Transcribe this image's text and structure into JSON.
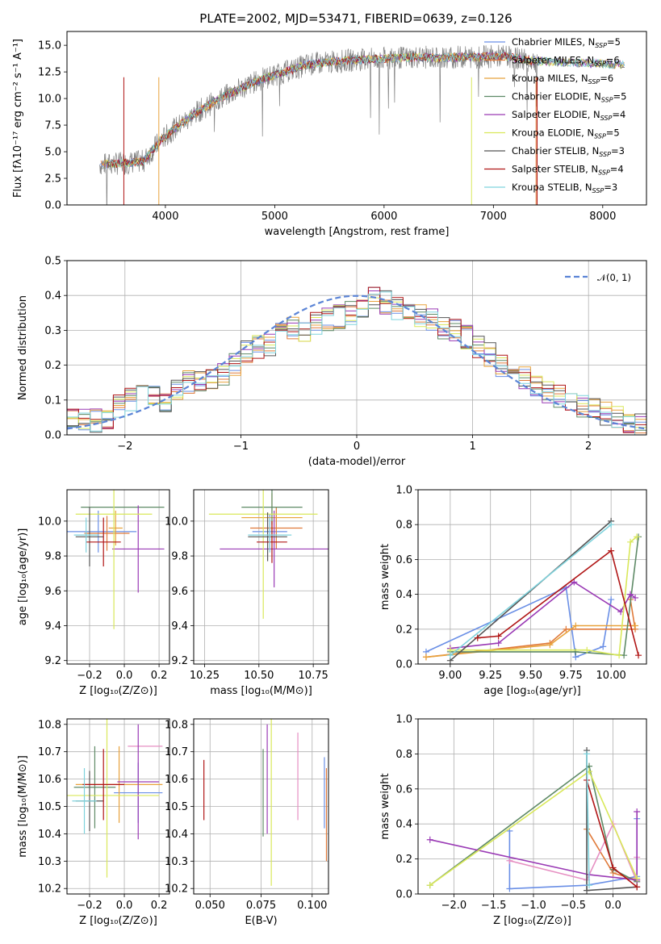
{
  "figure": {
    "title": "PLATE=2002, MJD=53471, FIBERID=0639, z=0.126"
  },
  "chart_data": [
    {
      "panel": "spectrum",
      "type": "line",
      "title": "PLATE=2002, MJD=53471, FIBERID=0639, z=0.126",
      "xlabel": "wavelength [Angstrom, rest frame]",
      "ylabel": "Flux [fλ10⁻¹⁷ erg cm⁻² s⁻¹ A⁻¹]",
      "xlim": [
        3100,
        8400
      ],
      "ylim": [
        0,
        16.3
      ],
      "xticks": [
        4000,
        5000,
        6000,
        7000,
        8000
      ],
      "yticks": [
        0.0,
        2.5,
        5.0,
        7.5,
        10.0,
        12.5,
        15.0
      ],
      "xtick_labels": [
        "4000",
        "5000",
        "6000",
        "7000",
        "8000"
      ],
      "ytick_labels": [
        "0.0",
        "2.5",
        "5.0",
        "7.5",
        "10.0",
        "12.5",
        "15.0"
      ],
      "grid": false,
      "legend_placement": "right",
      "legend": [
        {
          "name": "Chabrier MILES, N",
          "sub": "SSP",
          "suffix": "=5",
          "color": "#6a8fe6"
        },
        {
          "name": "Salpeter MILES, N",
          "sub": "SSP",
          "suffix": "=6",
          "color": "#e07a3a"
        },
        {
          "name": "Kroupa MILES, N",
          "sub": "SSP",
          "suffix": "=6",
          "color": "#e8a23c"
        },
        {
          "name": "Chabrier ELODIE, N",
          "sub": "SSP",
          "suffix": "=5",
          "color": "#5e8a66"
        },
        {
          "name": "Salpeter ELODIE, N",
          "sub": "SSP",
          "suffix": "=4",
          "color": "#9a3ab5"
        },
        {
          "name": "Kroupa ELODIE, N",
          "sub": "SSP",
          "suffix": "=5",
          "color": "#d9e85a"
        },
        {
          "name": "Chabrier STELIB, N",
          "sub": "SSP",
          "suffix": "=3",
          "color": "#555555"
        },
        {
          "name": "Salpeter STELIB, N",
          "sub": "SSP",
          "suffix": "=4",
          "color": "#b01515"
        },
        {
          "name": "Kroupa STELIB, N",
          "sub": "SSP",
          "suffix": "=3",
          "color": "#7fd3dd"
        }
      ],
      "data_color": "#808080",
      "continuum": {
        "x": [
          3400,
          3600,
          3800,
          3950,
          4100,
          4300,
          4500,
          4700,
          4900,
          5100,
          5300,
          5500,
          5700,
          5900,
          6100,
          6300,
          6500,
          6700,
          6900,
          7100,
          7300,
          7400
        ],
        "y": [
          3.8,
          3.9,
          4.1,
          6.0,
          7.3,
          8.8,
          10.0,
          11.0,
          11.9,
          12.5,
          13.2,
          13.4,
          13.6,
          13.7,
          13.8,
          13.9,
          13.8,
          13.9,
          13.9,
          14.0,
          13.6,
          13.5
        ]
      }
    },
    {
      "panel": "residuals",
      "type": "step",
      "xlabel": "(data-model)/error",
      "ylabel": "Normed distribution",
      "xlim": [
        -2.5,
        2.5
      ],
      "ylim": [
        0,
        0.5
      ],
      "xticks": [
        -2,
        -1,
        0,
        1,
        2
      ],
      "yticks": [
        0.0,
        0.1,
        0.2,
        0.3,
        0.4,
        0.5
      ],
      "xtick_labels": [
        "−2",
        "−1",
        "0",
        "1",
        "2"
      ],
      "ytick_labels": [
        "0.0",
        "0.1",
        "0.2",
        "0.3",
        "0.4",
        "0.5"
      ],
      "grid": true,
      "legend_placement": "top-right",
      "gaussian_label": "𝒩(0, 1)",
      "gaussian_color": "#5b84d6",
      "bin_edges_step": 0.1,
      "hist_values": [
        0.04,
        0.04,
        0.04,
        0.05,
        0.08,
        0.1,
        0.12,
        0.11,
        0.1,
        0.13,
        0.15,
        0.16,
        0.16,
        0.17,
        0.2,
        0.24,
        0.25,
        0.26,
        0.29,
        0.31,
        0.3,
        0.32,
        0.33,
        0.34,
        0.35,
        0.36,
        0.39,
        0.38,
        0.36,
        0.35,
        0.34,
        0.33,
        0.31,
        0.3,
        0.28,
        0.25,
        0.23,
        0.2,
        0.18,
        0.16,
        0.14,
        0.12,
        0.11,
        0.1,
        0.08,
        0.07,
        0.06,
        0.05,
        0.04,
        0.03
      ]
    },
    {
      "panel": "age-vs-Z",
      "type": "errorbar",
      "xlabel": "Z [log₁₀(Z/Z⊙)]",
      "ylabel": "age  [log₁₀(age/yr)]",
      "xlim": [
        -0.33,
        0.26
      ],
      "ylim": [
        9.18,
        10.18
      ],
      "xticks": [
        -0.2,
        0.0,
        0.2
      ],
      "yticks": [
        9.2,
        9.4,
        9.6,
        9.8,
        10.0
      ],
      "xtick_labels": [
        "−0.2",
        "0.0",
        "0.2"
      ],
      "ytick_labels": [
        "9.2",
        "9.4",
        "9.6",
        "9.8",
        "10.0"
      ],
      "grid": true,
      "points": [
        {
          "x": -0.15,
          "y": 9.94,
          "xerr": 0.22,
          "yerr": 0.12,
          "color": "#6a8fe6"
        },
        {
          "x": -0.1,
          "y": 9.93,
          "xerr": 0.13,
          "yerr": 0.1,
          "color": "#e07a3a"
        },
        {
          "x": -0.05,
          "y": 9.96,
          "xerr": 0.04,
          "yerr": 0.1,
          "color": "#e8a23c"
        },
        {
          "x": -0.01,
          "y": 10.08,
          "xerr": 0.24,
          "yerr": 0.0,
          "color": "#5e8a66"
        },
        {
          "x": 0.08,
          "y": 9.84,
          "xerr": 0.15,
          "yerr": 0.25,
          "color": "#9a3ab5"
        },
        {
          "x": -0.06,
          "y": 10.04,
          "xerr": 0.22,
          "yerr": 0.66,
          "color": "#d9e85a"
        },
        {
          "x": -0.2,
          "y": 9.91,
          "xerr": 0.08,
          "yerr": 0.17,
          "color": "#555555"
        },
        {
          "x": -0.12,
          "y": 9.88,
          "xerr": 0.1,
          "yerr": 0.14,
          "color": "#b01515"
        },
        {
          "x": -0.22,
          "y": 9.92,
          "xerr": 0.07,
          "yerr": 0.1,
          "color": "#7fd3dd"
        }
      ]
    },
    {
      "panel": "age-vs-mass",
      "type": "errorbar",
      "xlabel": "mass [log₁₀(M/M⊙)]",
      "ylabel": "",
      "xlim": [
        10.2,
        10.82
      ],
      "ylim": [
        9.18,
        10.18
      ],
      "xticks": [
        10.25,
        10.5,
        10.75
      ],
      "yticks": [
        9.2,
        9.4,
        9.6,
        9.8,
        10.0
      ],
      "xtick_labels": [
        "10.25",
        "10.50",
        "10.75"
      ],
      "ytick_labels": [
        "9.2",
        "9.4",
        "9.6",
        "9.8",
        "10.0"
      ],
      "grid": true,
      "points": [
        {
          "x": 10.55,
          "y": 9.94,
          "xerr": 0.08,
          "yerr": 0.1,
          "color": "#6a8fe6"
        },
        {
          "x": 10.58,
          "y": 9.96,
          "xerr": 0.12,
          "yerr": 0.12,
          "color": "#e07a3a"
        },
        {
          "x": 10.56,
          "y": 10.02,
          "xerr": 0.14,
          "yerr": 0.14,
          "color": "#e8a23c"
        },
        {
          "x": 10.56,
          "y": 10.08,
          "xerr": 0.14,
          "yerr": 0.1,
          "color": "#5e8a66"
        },
        {
          "x": 10.57,
          "y": 9.84,
          "xerr": 0.25,
          "yerr": 0.22,
          "color": "#9a3ab5"
        },
        {
          "x": 10.52,
          "y": 10.04,
          "xerr": 0.25,
          "yerr": 0.6,
          "color": "#d9e85a"
        },
        {
          "x": 10.54,
          "y": 9.91,
          "xerr": 0.09,
          "yerr": 0.14,
          "color": "#555555"
        },
        {
          "x": 10.56,
          "y": 9.88,
          "xerr": 0.07,
          "yerr": 0.12,
          "color": "#b01515"
        },
        {
          "x": 10.55,
          "y": 9.92,
          "xerr": 0.1,
          "yerr": 0.1,
          "color": "#7fd3dd"
        }
      ]
    },
    {
      "panel": "weight-vs-age",
      "type": "line",
      "xlabel": "age  [log₁₀(age/yr)]",
      "ylabel": "mass weight",
      "xlim": [
        8.8,
        10.22
      ],
      "ylim": [
        0,
        1.0
      ],
      "xticks": [
        9.0,
        9.25,
        9.5,
        9.75,
        10.0
      ],
      "yticks": [
        0.0,
        0.2,
        0.4,
        0.6,
        0.8,
        1.0
      ],
      "xtick_labels": [
        "9.00",
        "9.25",
        "9.50",
        "9.75",
        "10.00"
      ],
      "ytick_labels": [
        "0.0",
        "0.2",
        "0.4",
        "0.6",
        "0.8",
        "1.0"
      ],
      "grid": true,
      "series": [
        {
          "color": "#6a8fe6",
          "x": [
            8.85,
            9.72,
            9.78,
            9.95,
            10.0
          ],
          "y": [
            0.07,
            0.44,
            0.04,
            0.1,
            0.37
          ]
        },
        {
          "color": "#e07a3a",
          "x": [
            8.85,
            9.62,
            9.72,
            10.15,
            10.12
          ],
          "y": [
            0.04,
            0.12,
            0.2,
            0.2,
            0.37
          ]
        },
        {
          "color": "#e8a23c",
          "x": [
            8.85,
            9.62,
            9.78,
            10.15
          ],
          "y": [
            0.04,
            0.11,
            0.22,
            0.22
          ]
        },
        {
          "color": "#5e8a66",
          "x": [
            9.0,
            9.78,
            10.08,
            10.17
          ],
          "y": [
            0.07,
            0.07,
            0.05,
            0.73
          ]
        },
        {
          "color": "#9a3ab5",
          "x": [
            9.0,
            9.3,
            9.77,
            10.06,
            10.12,
            10.15
          ],
          "y": [
            0.09,
            0.12,
            0.47,
            0.3,
            0.4,
            0.38
          ]
        },
        {
          "color": "#d9e85a",
          "x": [
            9.0,
            9.85,
            10.05,
            10.12,
            10.16
          ],
          "y": [
            0.08,
            0.08,
            0.05,
            0.7,
            0.73
          ]
        },
        {
          "color": "#555555",
          "x": [
            9.0,
            10.0
          ],
          "y": [
            0.02,
            0.82
          ]
        },
        {
          "color": "#b01515",
          "x": [
            9.17,
            9.3,
            10.0,
            10.17
          ],
          "y": [
            0.15,
            0.16,
            0.65,
            0.05
          ]
        },
        {
          "color": "#7fd3dd",
          "x": [
            9.0,
            10.0
          ],
          "y": [
            0.05,
            0.8
          ]
        }
      ]
    },
    {
      "panel": "mass-vs-Z",
      "type": "errorbar",
      "xlabel": "Z [log₁₀(Z/Z⊙)]",
      "ylabel": "mass [log₁₀(M/M⊙)]",
      "xlim": [
        -0.33,
        0.26
      ],
      "ylim": [
        10.18,
        10.82
      ],
      "xticks": [
        -0.2,
        0.0,
        0.2
      ],
      "yticks": [
        10.2,
        10.3,
        10.4,
        10.5,
        10.6,
        10.7,
        10.8
      ],
      "xtick_labels": [
        "−0.2",
        "0.0",
        "0.2"
      ],
      "ytick_labels": [
        "10.2",
        "10.3",
        "10.4",
        "10.5",
        "10.6",
        "10.7",
        "10.8"
      ],
      "grid": true,
      "points": [
        {
          "x": 0.08,
          "y": 10.55,
          "xerr": 0.14,
          "yerr": 0.11,
          "color": "#6a8fe6"
        },
        {
          "x": 0.12,
          "y": 10.72,
          "xerr": 0.1,
          "yerr": 0.0,
          "color": "#e68fc2"
        },
        {
          "x": -0.03,
          "y": 10.58,
          "xerr": 0.25,
          "yerr": 0.14,
          "color": "#e8a23c"
        },
        {
          "x": -0.17,
          "y": 10.57,
          "xerr": 0.12,
          "yerr": 0.15,
          "color": "#5e8a66"
        },
        {
          "x": 0.08,
          "y": 10.59,
          "xerr": 0.12,
          "yerr": 0.21,
          "color": "#9a3ab5"
        },
        {
          "x": -0.1,
          "y": 10.54,
          "xerr": 0.3,
          "yerr": 0.3,
          "color": "#d9e85a"
        },
        {
          "x": -0.2,
          "y": 10.52,
          "xerr": 0.08,
          "yerr": 0.11,
          "color": "#555555"
        },
        {
          "x": -0.12,
          "y": 10.58,
          "xerr": 0.12,
          "yerr": 0.13,
          "color": "#b01515"
        },
        {
          "x": -0.23,
          "y": 10.52,
          "xerr": 0.07,
          "yerr": 0.12,
          "color": "#7fd3dd"
        }
      ]
    },
    {
      "panel": "mass-vs-EBV",
      "type": "errorbar",
      "xlabel": "E(B-V)",
      "ylabel": "",
      "xlim": [
        0.042,
        0.108
      ],
      "ylim": [
        10.18,
        10.82
      ],
      "xticks": [
        0.05,
        0.075,
        0.1
      ],
      "yticks": [
        10.2,
        10.3,
        10.4,
        10.5,
        10.6,
        10.7,
        10.8
      ],
      "xtick_labels": [
        "0.050",
        "0.075",
        "0.100"
      ],
      "ytick_labels": [
        "10.2",
        "10.3",
        "10.4",
        "10.5",
        "10.6",
        "10.7",
        "10.8"
      ],
      "grid": true,
      "points": [
        {
          "x": 0.047,
          "y": 10.56,
          "yerr": 0.11,
          "color": "#b01515"
        },
        {
          "x": 0.076,
          "y": 10.55,
          "yerr": 0.16,
          "color": "#5e8a66"
        },
        {
          "x": 0.078,
          "y": 10.6,
          "yerr": 0.2,
          "color": "#9a3ab5"
        },
        {
          "x": 0.08,
          "y": 10.56,
          "yerr": 0.35,
          "color": "#d9e85a"
        },
        {
          "x": 0.093,
          "y": 10.61,
          "yerr": 0.16,
          "color": "#e68fc2"
        },
        {
          "x": 0.106,
          "y": 10.55,
          "yerr": 0.13,
          "color": "#6a8fe6"
        },
        {
          "x": 0.107,
          "y": 10.47,
          "yerr": 0.17,
          "color": "#e07a3a"
        }
      ]
    },
    {
      "panel": "weight-vs-Z",
      "type": "line",
      "xlabel": "Z [log₁₀(Z/Z⊙)]",
      "ylabel": "mass weight",
      "xlim": [
        -2.45,
        0.42
      ],
      "ylim": [
        0,
        1.0
      ],
      "xticks": [
        -2.0,
        -1.5,
        -1.0,
        -0.5,
        0.0
      ],
      "yticks": [
        0.0,
        0.2,
        0.4,
        0.6,
        0.8,
        1.0
      ],
      "xtick_labels": [
        "−2.0",
        "−1.5",
        "−1.0",
        "−0.5",
        "0.0"
      ],
      "ytick_labels": [
        "0.0",
        "0.2",
        "0.4",
        "0.6",
        "0.8",
        "1.0"
      ],
      "grid": true,
      "series": [
        {
          "color": "#6a8fe6",
          "x": [
            -1.3,
            -1.3,
            -0.33,
            0.3,
            0.3
          ],
          "y": [
            0.36,
            0.03,
            0.05,
            0.1,
            0.43
          ]
        },
        {
          "color": "#e07a3a",
          "x": [
            -0.33,
            0.0,
            0.3
          ],
          "y": [
            0.37,
            0.12,
            0.08
          ]
        },
        {
          "color": "#e68fc2",
          "x": [
            -1.3,
            -0.33,
            0.0,
            0.3,
            0.3
          ],
          "y": [
            0.19,
            0.08,
            0.4,
            0.07,
            0.21
          ]
        },
        {
          "color": "#5e8a66",
          "x": [
            -2.3,
            -0.3,
            0.0,
            0.3
          ],
          "y": [
            0.05,
            0.73,
            0.14,
            0.07
          ]
        },
        {
          "color": "#9a3ab5",
          "x": [
            -2.3,
            -0.3,
            0.3,
            0.3
          ],
          "y": [
            0.31,
            0.11,
            0.08,
            0.47
          ]
        },
        {
          "color": "#d9e85a",
          "x": [
            -2.3,
            -0.3,
            0.3
          ],
          "y": [
            0.05,
            0.7,
            0.09
          ]
        },
        {
          "color": "#555555",
          "x": [
            -0.33,
            -0.33,
            0.3
          ],
          "y": [
            0.82,
            0.02,
            0.04
          ]
        },
        {
          "color": "#b01515",
          "x": [
            -0.33,
            0.0,
            0.3
          ],
          "y": [
            0.65,
            0.15,
            0.04
          ]
        },
        {
          "color": "#7fd3dd",
          "x": [
            -0.33,
            -0.3
          ],
          "y": [
            0.8,
            0.05
          ]
        }
      ]
    }
  ]
}
